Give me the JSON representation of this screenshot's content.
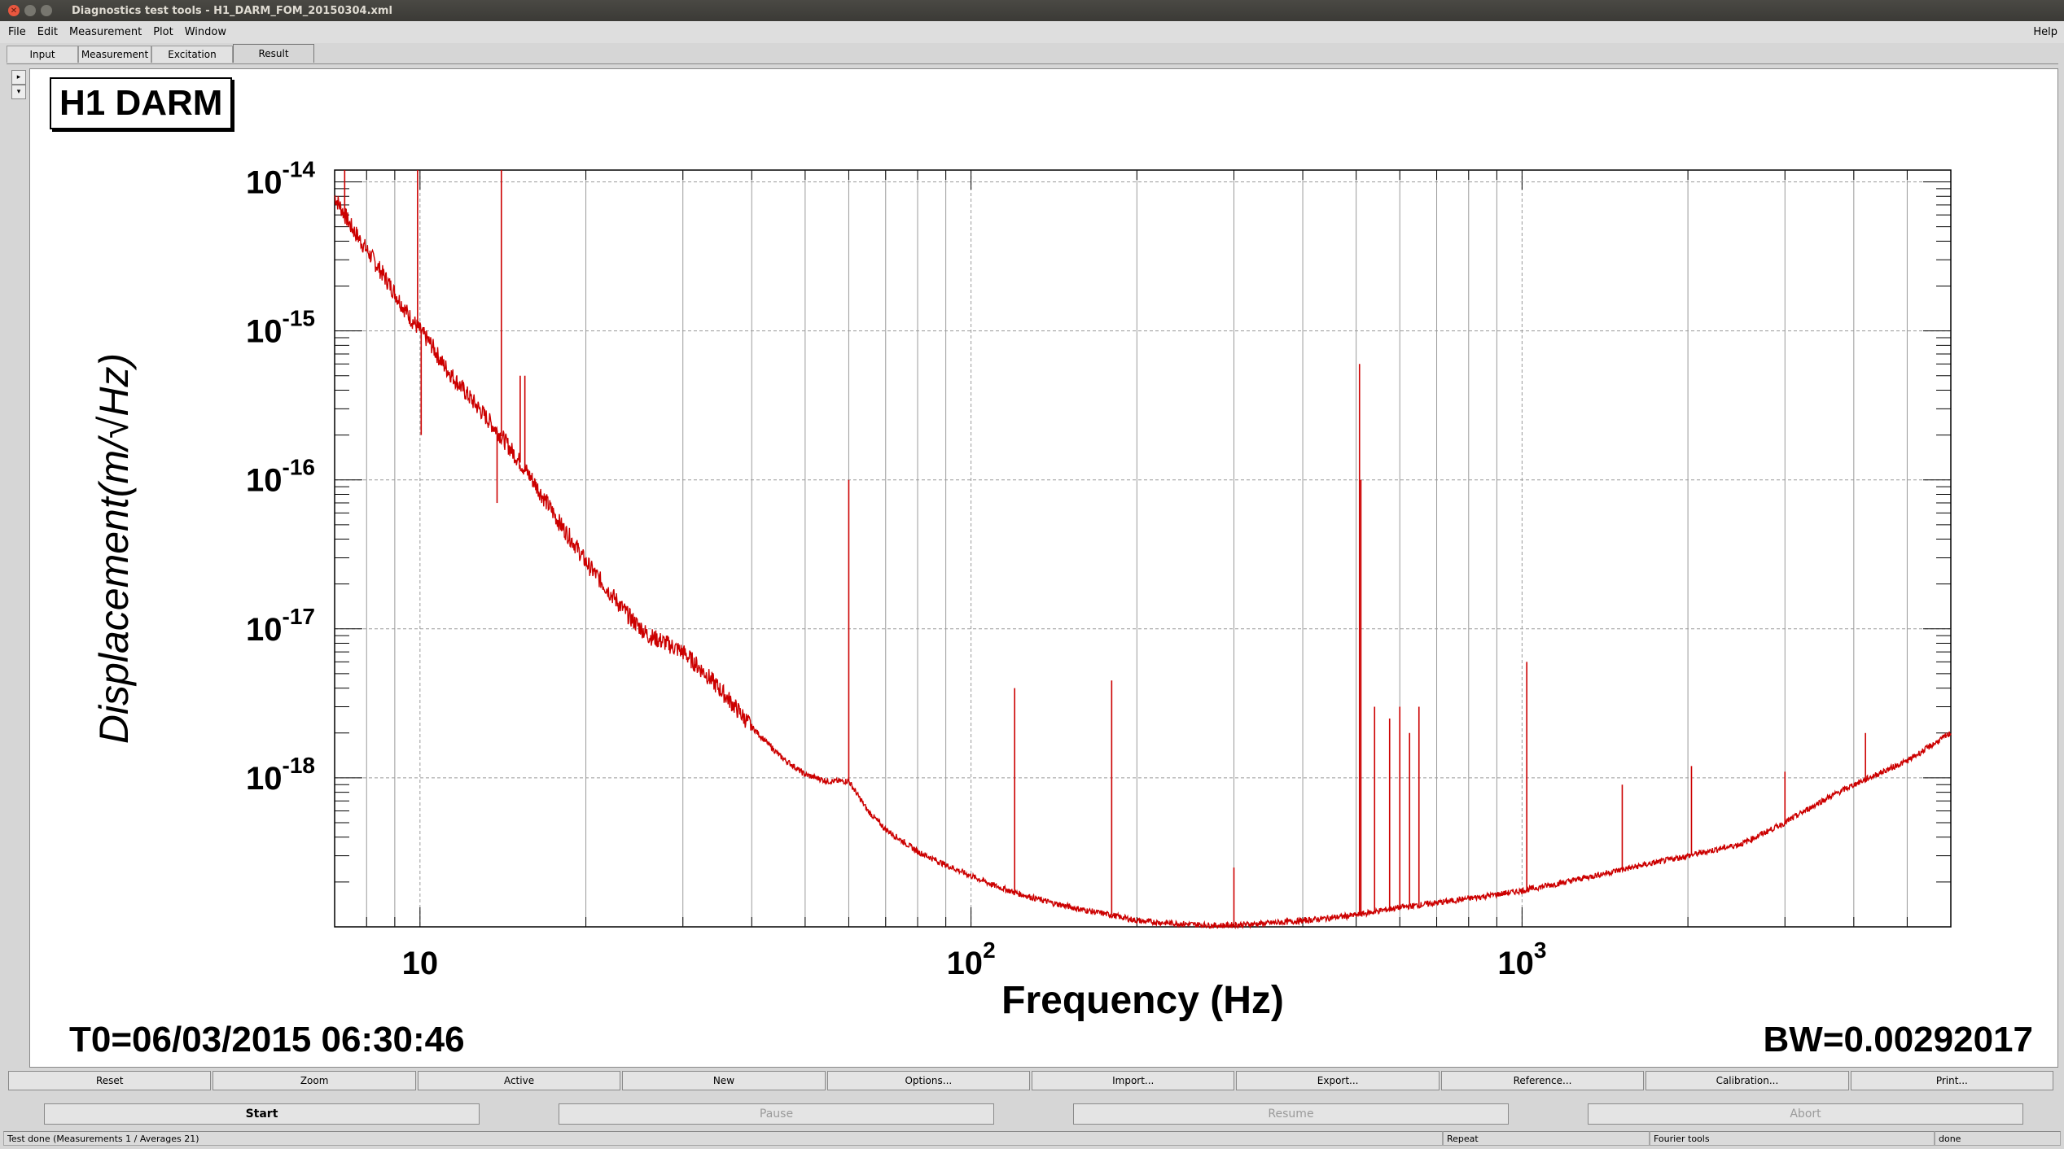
{
  "window": {
    "title": "Diagnostics test tools - H1_DARM_FOM_20150304.xml",
    "controls": [
      "close",
      "minimize",
      "maximize"
    ]
  },
  "menu": {
    "items": [
      "File",
      "Edit",
      "Measurement",
      "Plot",
      "Window"
    ],
    "help": "Help"
  },
  "tabs": [
    {
      "label": "Input",
      "active": false
    },
    {
      "label": "Measurement",
      "active": false
    },
    {
      "label": "Excitation",
      "active": false
    },
    {
      "label": "Result",
      "active": true
    }
  ],
  "side_arrows": [
    "▸",
    "▾"
  ],
  "plot": {
    "pad_title": "H1 DARM",
    "t0": "T0=06/03/2015 06:30:46",
    "bw": "BW=0.00292017"
  },
  "chart_data": {
    "type": "line",
    "title": "H1 DARM",
    "xlabel": "Frequency (Hz)",
    "ylabel": "Displacement(m/√Hz)",
    "x_scale": "log",
    "y_scale": "log",
    "xlim": [
      7,
      6000
    ],
    "ylim": [
      1e-19,
      1.2e-14
    ],
    "x_tick_labels": [
      "10",
      "10^2",
      "10^3"
    ],
    "y_tick_labels": [
      "10^-14",
      "10^-15",
      "10^-16",
      "10^-17",
      "10^-18"
    ],
    "grid": true,
    "line_color": "#cc0000",
    "series": [
      {
        "x": [
          7,
          7.5,
          8,
          8.5,
          9,
          9.5,
          10,
          10.5,
          11,
          12,
          13,
          14,
          15,
          16,
          17,
          18,
          19,
          20,
          22,
          24,
          26,
          28,
          30,
          33,
          36,
          40,
          45,
          50,
          55,
          60,
          65,
          70,
          80,
          90,
          100,
          110,
          120,
          140,
          160,
          180,
          200,
          220,
          250,
          280,
          300,
          350,
          400,
          450,
          500,
          550,
          600,
          700,
          800,
          900,
          1000,
          1200,
          1500,
          2000,
          2500,
          3000,
          3500,
          4000,
          5000,
          6000
        ],
        "y": [
          8e-15,
          5e-15,
          3.5e-15,
          2.5e-15,
          1.8e-15,
          1.3e-15,
          1e-15,
          8e-16,
          6e-16,
          4e-16,
          2.8e-16,
          2e-16,
          1.4e-16,
          1e-16,
          7e-17,
          5e-17,
          3.8e-17,
          2.8e-17,
          1.8e-17,
          1.2e-17,
          9e-18,
          8e-18,
          7e-18,
          5e-18,
          3.5e-18,
          2.2e-18,
          1.4e-18,
          1.05e-18,
          9.5e-19,
          9.5e-19,
          6e-19,
          4.5e-19,
          3.2e-19,
          2.6e-19,
          2.2e-19,
          1.9e-19,
          1.7e-19,
          1.45e-19,
          1.3e-19,
          1.2e-19,
          1.1e-19,
          1.07e-19,
          1.04e-19,
          1.02e-19,
          1.03e-19,
          1.06e-19,
          1.1e-19,
          1.15e-19,
          1.2e-19,
          1.28e-19,
          1.35e-19,
          1.45e-19,
          1.55e-19,
          1.65e-19,
          1.75e-19,
          2e-19,
          2.4e-19,
          3e-19,
          3.6e-19,
          5e-19,
          7e-19,
          9e-19,
          1.3e-18,
          2e-18
        ]
      }
    ],
    "peaks": [
      {
        "f": 7.3,
        "amp": 1.2e-14
      },
      {
        "f": 9.9,
        "amp": 1.2e-14
      },
      {
        "f": 10.05,
        "amp": 2e-16
      },
      {
        "f": 14.05,
        "amp": 1.2e-14
      },
      {
        "f": 13.8,
        "amp": 7e-17
      },
      {
        "f": 15.2,
        "amp": 5e-16
      },
      {
        "f": 15.5,
        "amp": 5e-16
      },
      {
        "f": 60,
        "amp": 1e-16
      },
      {
        "f": 120,
        "amp": 4e-18
      },
      {
        "f": 180,
        "amp": 4.5e-18
      },
      {
        "f": 300,
        "amp": 2.5e-19
      },
      {
        "f": 507,
        "amp": 6e-16
      },
      {
        "f": 510,
        "amp": 1e-16
      },
      {
        "f": 540,
        "amp": 3e-18
      },
      {
        "f": 575,
        "amp": 2.5e-18
      },
      {
        "f": 600,
        "amp": 3e-18
      },
      {
        "f": 625,
        "amp": 2e-18
      },
      {
        "f": 650,
        "amp": 3e-18
      },
      {
        "f": 1020,
        "amp": 6e-18
      },
      {
        "f": 1520,
        "amp": 9e-19
      },
      {
        "f": 2030,
        "amp": 1.2e-18
      },
      {
        "f": 3000,
        "amp": 1.1e-18
      },
      {
        "f": 4200,
        "amp": 2e-18
      }
    ]
  },
  "buttons_row1": [
    "Reset",
    "Zoom",
    "Active",
    "New",
    "Options...",
    "Import...",
    "Export...",
    "Reference...",
    "Calibration...",
    "Print..."
  ],
  "buttons_row2": [
    {
      "label": "Start",
      "enabled": true
    },
    {
      "label": "Pause",
      "enabled": false
    },
    {
      "label": "Resume",
      "enabled": false
    },
    {
      "label": "Abort",
      "enabled": false
    }
  ],
  "status": {
    "message": "Test done (Measurements 1 / Averages 21)",
    "repeat": "Repeat",
    "tool": "Fourier tools",
    "state": "done"
  }
}
